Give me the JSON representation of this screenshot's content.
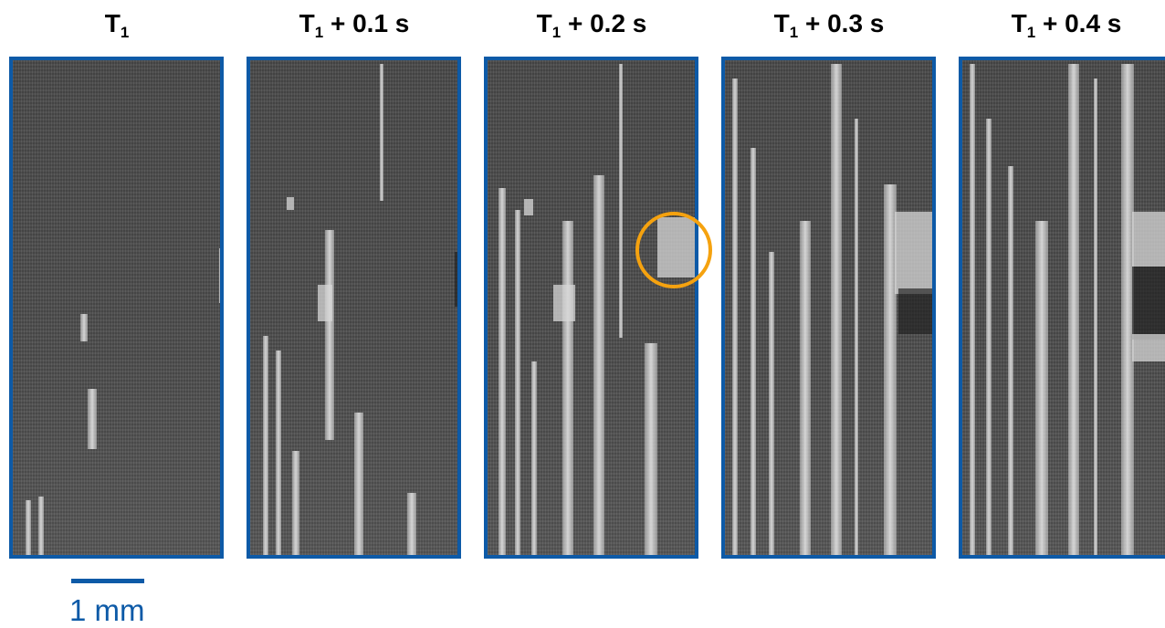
{
  "panels": [
    {
      "title_main": "T",
      "title_sub": "1",
      "title_suffix": ""
    },
    {
      "title_main": "T",
      "title_sub": "1",
      "title_suffix": " + 0.1 s"
    },
    {
      "title_main": "T",
      "title_sub": "1",
      "title_suffix": " + 0.2 s"
    },
    {
      "title_main": "T",
      "title_sub": "1",
      "title_suffix": " + 0.3 s"
    },
    {
      "title_main": "T",
      "title_sub": "1",
      "title_suffix": " + 0.4 s"
    }
  ],
  "scale_bar": {
    "label": "1 mm"
  },
  "colors": {
    "frame": "#0d5aa7",
    "highlight_circle": "#f5a20f",
    "scale": "#0d5aa7"
  }
}
